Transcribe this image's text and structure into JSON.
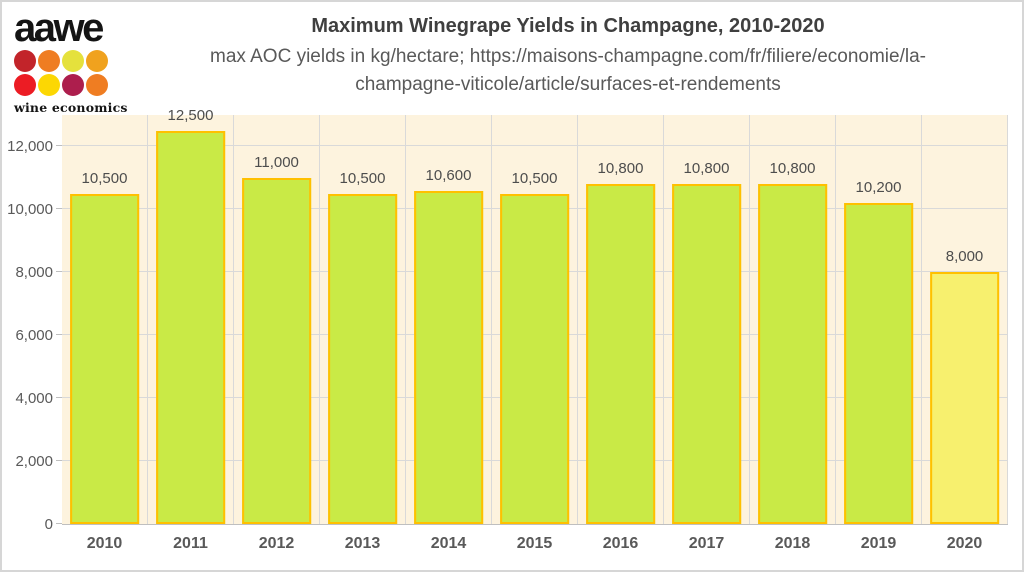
{
  "logo": {
    "brand": "aawe",
    "tagline": "wine economics",
    "dot_colors": [
      [
        "#c2242a",
        "#ef7d22",
        "#e5e13c",
        "#f0a21e"
      ],
      [
        "#ec1c24",
        "#fcd703",
        "#ad1e4d",
        "#ef7d22"
      ]
    ]
  },
  "header": {
    "title": "Maximum Winegrape Yields in Champagne, 2010-2020",
    "subtitle_line1": "max AOC yields in kg/hectare; https://maisons-champagne.com/fr/filiere/economie/la-",
    "subtitle_line2": "champagne-viticole/article/surfaces-et-rendements"
  },
  "chart_data": {
    "type": "bar",
    "title": "Maximum Winegrape Yields in Champagne, 2010-2020",
    "subtitle": "max AOC yields in kg/hectare; https://maisons-champagne.com/fr/filiere/economie/la-champagne-viticole/article/surfaces-et-rendements",
    "categories": [
      "2010",
      "2011",
      "2012",
      "2013",
      "2014",
      "2015",
      "2016",
      "2017",
      "2018",
      "2019",
      "2020"
    ],
    "values": [
      10500,
      12500,
      11000,
      10500,
      10600,
      10500,
      10800,
      10800,
      10800,
      10200,
      8000
    ],
    "value_labels": [
      "10,500",
      "12,500",
      "11,000",
      "10,500",
      "10,600",
      "10,500",
      "10,800",
      "10,800",
      "10,800",
      "10,200",
      "8,000"
    ],
    "xlabel": "",
    "ylabel": "",
    "ylim": [
      0,
      13000
    ],
    "ytick_values": [
      0,
      2000,
      4000,
      6000,
      8000,
      10000,
      12000
    ],
    "ytick_labels": [
      "0",
      "2,000",
      "4,000",
      "6,000",
      "8,000",
      "10,000",
      "12,000"
    ],
    "grid": "on",
    "legend": "none",
    "colors": {
      "bar_fill": "#c9ea46",
      "bar_fill_2020": "#f7f06e",
      "bar_border": "#ffc000",
      "plot_background": "#fdf3de",
      "gridline": "#d9d9d9",
      "axis_line": "#bfbfbf",
      "tick_label": "#595959",
      "data_label": "#4d4d4d",
      "title_text": "#3f3f3f"
    },
    "bar_fills": [
      "#c9ea46",
      "#c9ea46",
      "#c9ea46",
      "#c9ea46",
      "#c9ea46",
      "#c9ea46",
      "#c9ea46",
      "#c9ea46",
      "#c9ea46",
      "#c9ea46",
      "#f7f06e"
    ]
  }
}
